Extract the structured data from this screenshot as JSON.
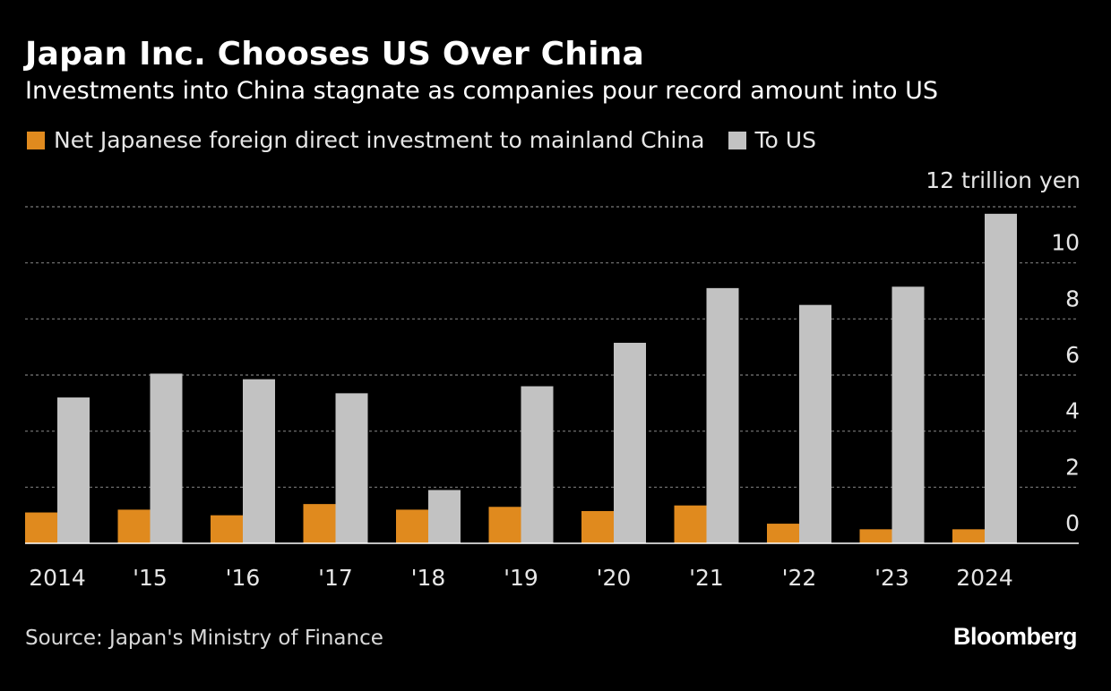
{
  "header": {
    "title": "Japan Inc. Chooses US Over China",
    "subtitle": "Investments into China stagnate as companies pour record amount into US"
  },
  "legend": {
    "china_label": "Net Japanese foreign direct investment to mainland China",
    "us_label": "To US"
  },
  "unit_label": "12 trillion yen",
  "footer": {
    "source": "Source: Japan's Ministry of Finance",
    "brand": "Bloomberg"
  },
  "colors": {
    "china": "#e08a1e",
    "us": "#c2c2c2",
    "background": "#000000",
    "grid": "#7a7a7a"
  },
  "chart_data": {
    "type": "bar",
    "categories": [
      "2014",
      "'15",
      "'16",
      "'17",
      "'18",
      "'19",
      "'20",
      "'21",
      "'22",
      "'23",
      "2024"
    ],
    "series": [
      {
        "name": "Net Japanese foreign direct investment to mainland China",
        "values": [
          1.1,
          1.2,
          1.0,
          1.4,
          1.2,
          1.3,
          1.15,
          1.35,
          0.7,
          0.5,
          0.5
        ]
      },
      {
        "name": "To US",
        "values": [
          5.2,
          6.05,
          5.85,
          5.35,
          1.9,
          5.6,
          7.15,
          9.1,
          8.5,
          9.15,
          11.75
        ]
      }
    ],
    "ylim": [
      0,
      12
    ],
    "yticks": [
      "0",
      "2",
      "4",
      "6",
      "8",
      "10"
    ],
    "ytick_values": [
      0,
      2,
      4,
      6,
      8,
      10
    ],
    "grid": true,
    "y_axis_position": "right",
    "legend_position": "top-left"
  }
}
